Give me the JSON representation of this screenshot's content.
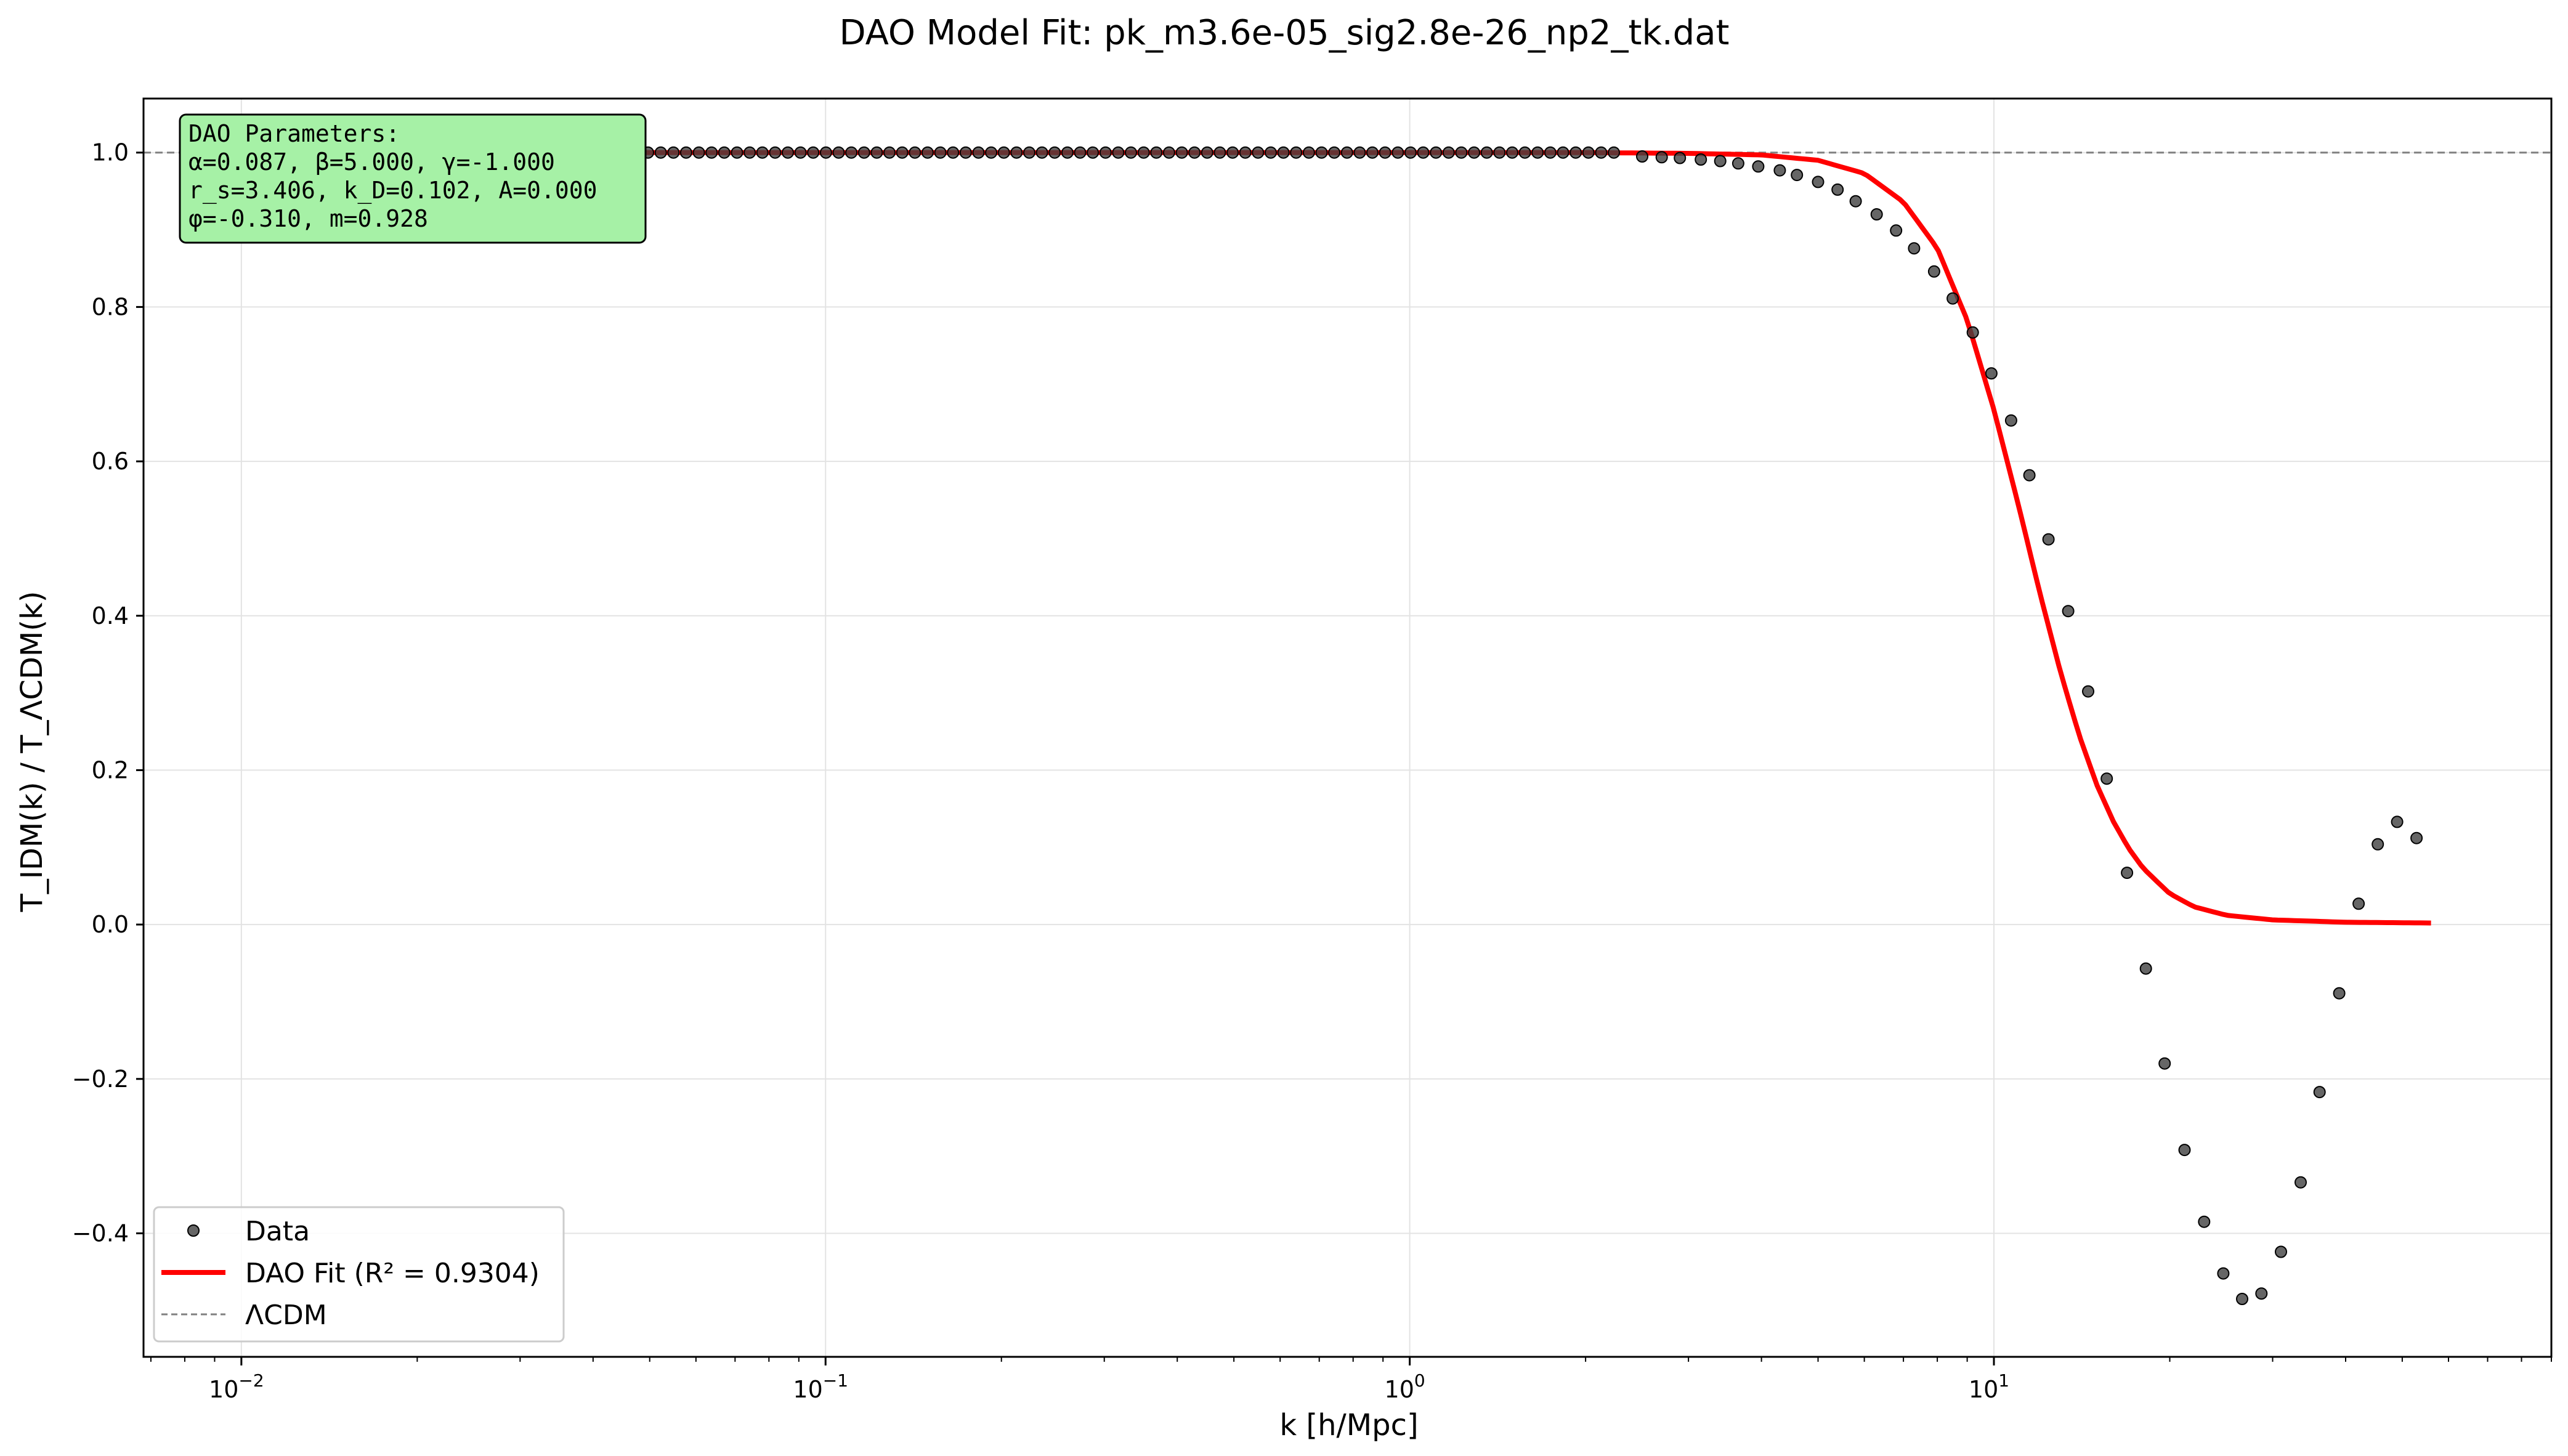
{
  "chart_data": {
    "type": "scatter",
    "title": "DAO Model Fit: pk_m3.6e-05_sig2.8e-26_np2_tk.dat",
    "xlabel": "k [h/Mpc]",
    "ylabel": "T_IDM(k) / T_ΛCDM(k)",
    "xscale": "log",
    "xlim": [
      0.0068,
      90
    ],
    "ylim": [
      -0.56,
      1.07
    ],
    "x_ticks": [
      {
        "value": 0.01,
        "base": "10",
        "exp": "−2"
      },
      {
        "value": 0.1,
        "base": "10",
        "exp": "−1"
      },
      {
        "value": 1,
        "base": "10",
        "exp": "0"
      },
      {
        "value": 10,
        "base": "10",
        "exp": "1"
      }
    ],
    "y_ticks": [
      {
        "value": -0.4,
        "label": "−0.4"
      },
      {
        "value": -0.2,
        "label": "−0.2"
      },
      {
        "value": 0.0,
        "label": "0.0"
      },
      {
        "value": 0.2,
        "label": "0.2"
      },
      {
        "value": 0.4,
        "label": "0.4"
      },
      {
        "value": 0.6,
        "label": "0.6"
      },
      {
        "value": 0.8,
        "label": "0.8"
      },
      {
        "value": 1.0,
        "label": "1.0"
      }
    ],
    "grid": true,
    "legend_position": "lower-left",
    "series": [
      {
        "name": "Data",
        "kind": "points",
        "color": "#404040",
        "x_range": [
          0.01,
          58
        ],
        "n_points": 174,
        "points": [
          [
            2.5,
            0.995
          ],
          [
            2.7,
            0.994
          ],
          [
            2.9,
            0.993
          ],
          [
            3.15,
            0.991
          ],
          [
            3.4,
            0.989
          ],
          [
            3.65,
            0.986
          ],
          [
            3.95,
            0.982
          ],
          [
            4.3,
            0.977
          ],
          [
            4.6,
            0.971
          ],
          [
            5.0,
            0.962
          ],
          [
            5.4,
            0.952
          ],
          [
            5.8,
            0.937
          ],
          [
            6.3,
            0.92
          ],
          [
            6.8,
            0.899
          ],
          [
            7.3,
            0.876
          ],
          [
            7.9,
            0.846
          ],
          [
            8.5,
            0.811
          ],
          [
            9.2,
            0.767
          ],
          [
            9.9,
            0.714
          ],
          [
            10.7,
            0.653
          ],
          [
            11.5,
            0.582
          ],
          [
            12.4,
            0.499
          ],
          [
            13.4,
            0.406
          ],
          [
            14.5,
            0.302
          ],
          [
            15.6,
            0.189
          ],
          [
            16.9,
            0.067
          ],
          [
            18.2,
            -0.057
          ],
          [
            19.6,
            -0.18
          ],
          [
            21.2,
            -0.292
          ],
          [
            22.9,
            -0.385
          ],
          [
            24.7,
            -0.452
          ],
          [
            26.6,
            -0.485
          ],
          [
            28.7,
            -0.478
          ],
          [
            31.0,
            -0.424
          ],
          [
            33.5,
            -0.334
          ],
          [
            36.1,
            -0.217
          ],
          [
            39.0,
            -0.089
          ],
          [
            42.1,
            0.027
          ],
          [
            45.4,
            0.104
          ],
          [
            49.0,
            0.133
          ],
          [
            52.9,
            0.112
          ]
        ],
        "flat_value": 1.0,
        "flat_until": 2.3
      },
      {
        "name": "DAO Fit (R² = 0.9304)",
        "kind": "line",
        "color": "#ff0000",
        "x_range": [
          0.01,
          56
        ],
        "curve": [
          [
            0.01,
            1.0
          ],
          [
            2.0,
            1.0
          ],
          [
            3.0,
            0.999
          ],
          [
            4.0,
            0.997
          ],
          [
            5.0,
            0.99
          ],
          [
            6.0,
            0.973
          ],
          [
            7.0,
            0.936
          ],
          [
            8.0,
            0.876
          ],
          [
            9.0,
            0.783
          ],
          [
            10.0,
            0.667
          ],
          [
            11.0,
            0.545
          ],
          [
            12.0,
            0.428
          ],
          [
            13.0,
            0.327
          ],
          [
            14.0,
            0.245
          ],
          [
            15.0,
            0.181
          ],
          [
            16.0,
            0.134
          ],
          [
            17.0,
            0.099
          ],
          [
            18.0,
            0.073
          ],
          [
            20.0,
            0.04
          ],
          [
            22.0,
            0.023
          ],
          [
            25.0,
            0.012
          ],
          [
            30.0,
            0.006
          ],
          [
            40.0,
            0.003
          ],
          [
            56.0,
            0.002
          ]
        ]
      },
      {
        "name": "ΛCDM",
        "kind": "hline",
        "color": "#808080",
        "y": 1.0
      }
    ],
    "annotation": {
      "lines": [
        "DAO Parameters:",
        "α=0.087, β=5.000, γ=-1.000",
        "r_s=3.406, k_D=0.102, A=0.000",
        "φ=-0.310, m=0.928"
      ],
      "background": "#a6f1a6"
    }
  }
}
